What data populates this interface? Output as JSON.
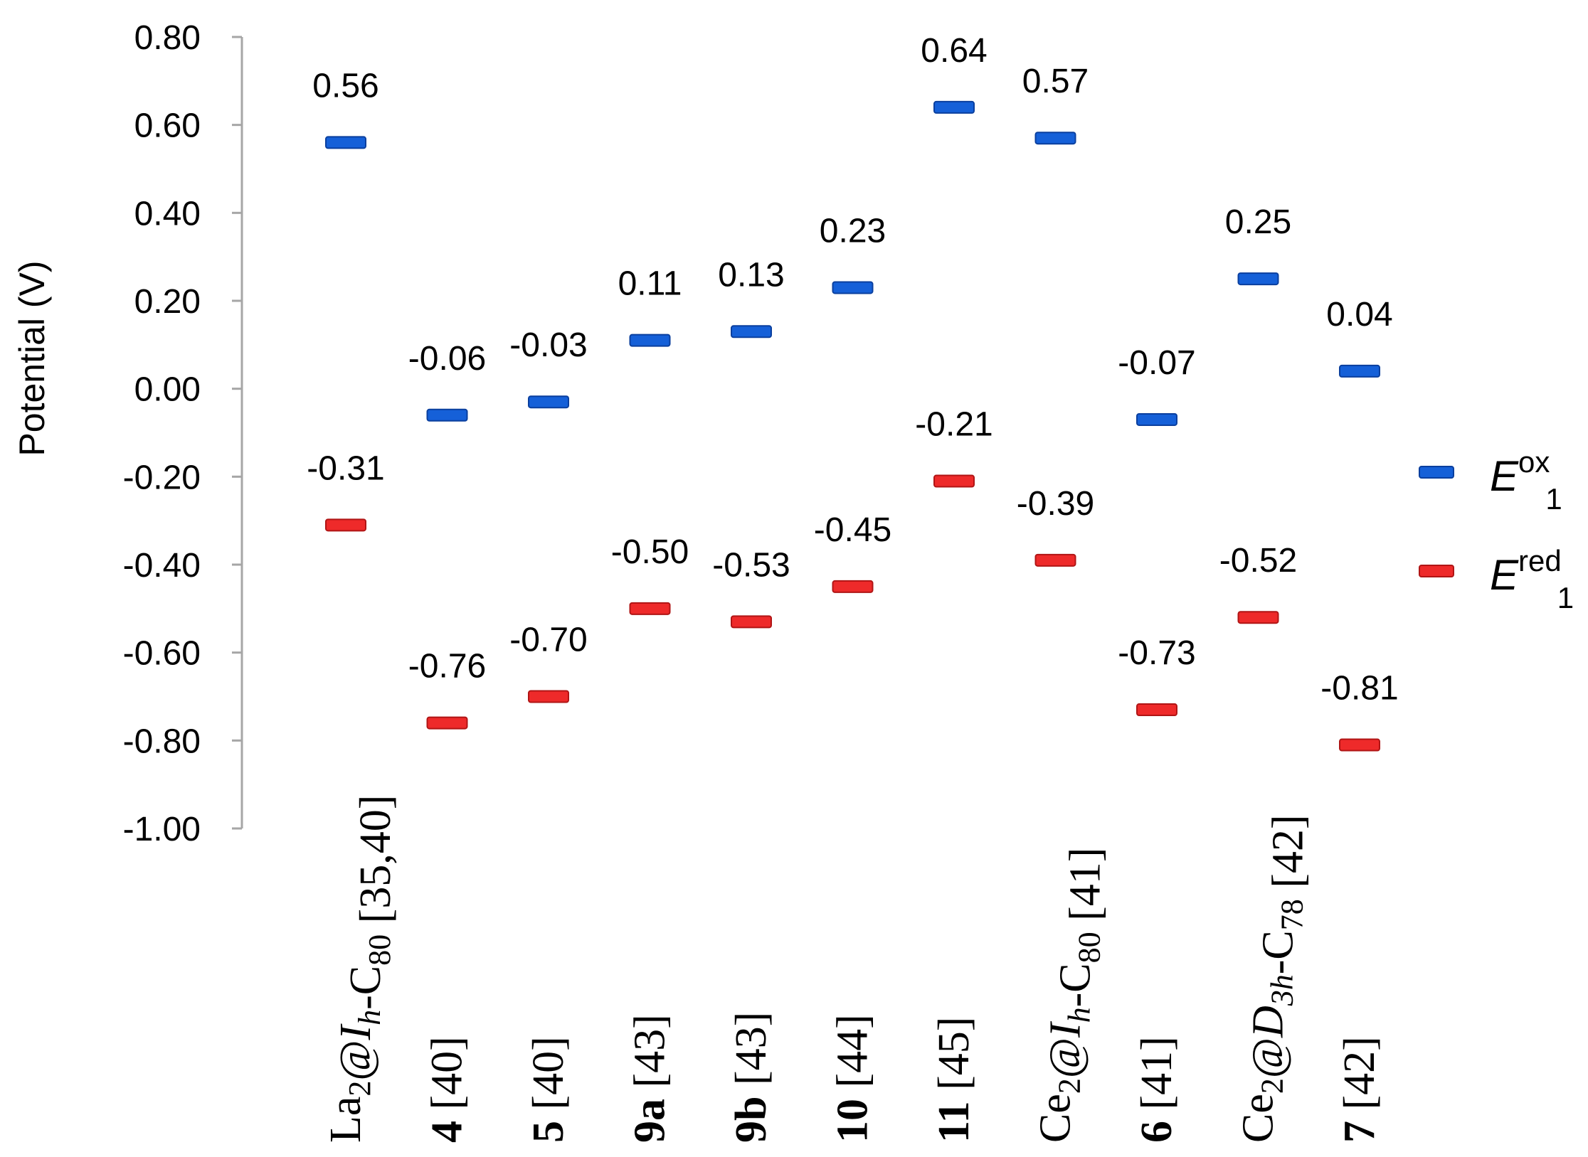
{
  "chart_data": {
    "type": "scatter",
    "title": "",
    "xlabel": "",
    "ylabel": "Potential (V)",
    "ylim": [
      -1.0,
      0.8
    ],
    "yticks": [
      "0.80",
      "0.60",
      "0.40",
      "0.20",
      "0.00",
      "-0.20",
      "-0.40",
      "-0.60",
      "-0.80",
      "-1.00"
    ],
    "categories": [
      {
        "parts": [
          {
            "t": "La"
          },
          {
            "t": "2",
            "sub": true
          },
          {
            "t": "@"
          },
          {
            "t": "I",
            "italic": true
          },
          {
            "t": "h",
            "italic": true,
            "sub": true
          },
          {
            "t": "-C"
          },
          {
            "t": "80",
            "sub": true
          },
          {
            "t": " [35,40]"
          }
        ]
      },
      {
        "parts": [
          {
            "t": "4",
            "bold": true
          },
          {
            "t": " [40]"
          }
        ]
      },
      {
        "parts": [
          {
            "t": "5",
            "bold": true
          },
          {
            "t": " [40]"
          }
        ]
      },
      {
        "parts": [
          {
            "t": "9a",
            "bold": true
          },
          {
            "t": " [43]"
          }
        ]
      },
      {
        "parts": [
          {
            "t": "9b",
            "bold": true
          },
          {
            "t": " [43]"
          }
        ]
      },
      {
        "parts": [
          {
            "t": "10",
            "bold": true
          },
          {
            "t": " [44]"
          }
        ]
      },
      {
        "parts": [
          {
            "t": "11",
            "bold": true
          },
          {
            "t": " [45]"
          }
        ]
      },
      {
        "parts": [
          {
            "t": "Ce"
          },
          {
            "t": "2",
            "sub": true
          },
          {
            "t": "@"
          },
          {
            "t": "I",
            "italic": true
          },
          {
            "t": "h",
            "italic": true,
            "sub": true
          },
          {
            "t": "-C"
          },
          {
            "t": "80",
            "sub": true
          },
          {
            "t": " [41]"
          }
        ]
      },
      {
        "parts": [
          {
            "t": "6",
            "bold": true
          },
          {
            "t": " [41]"
          }
        ]
      },
      {
        "parts": [
          {
            "t": "Ce"
          },
          {
            "t": "2",
            "sub": true
          },
          {
            "t": "@"
          },
          {
            "t": "D",
            "italic": true
          },
          {
            "t": "3h",
            "italic": true,
            "sub": true
          },
          {
            "t": "-C"
          },
          {
            "t": "78",
            "sub": true
          },
          {
            "t": " [42]"
          }
        ]
      },
      {
        "parts": [
          {
            "t": "7",
            "bold": true
          },
          {
            "t": " [42]"
          }
        ]
      }
    ],
    "series": [
      {
        "name": "E ox 1",
        "legend": {
          "main": "E",
          "sup": "ox",
          "sub": "1"
        },
        "color": "#1560d8",
        "edge": "#0a3f9e",
        "values": [
          0.56,
          -0.06,
          -0.03,
          0.11,
          0.13,
          0.23,
          0.64,
          0.57,
          -0.07,
          0.25,
          0.04
        ],
        "labels": [
          "0.56",
          "-0.06",
          "-0.03",
          "0.11",
          "0.13",
          "0.23",
          "0.64",
          "0.57",
          "-0.07",
          "0.25",
          "0.04"
        ]
      },
      {
        "name": "E red 1",
        "legend": {
          "main": "E",
          "sup": "red",
          "sub": "1"
        },
        "color": "#ee2a2a",
        "edge": "#b01515",
        "values": [
          -0.31,
          -0.76,
          -0.7,
          -0.5,
          -0.53,
          -0.45,
          -0.21,
          -0.39,
          -0.73,
          -0.52,
          -0.81
        ],
        "labels": [
          "-0.31",
          "-0.76",
          "-0.70",
          "-0.50",
          "-0.53",
          "-0.45",
          "-0.21",
          "-0.39",
          "-0.73",
          "-0.52",
          "-0.81"
        ]
      }
    ],
    "grid": false,
    "legend_position": "right"
  }
}
